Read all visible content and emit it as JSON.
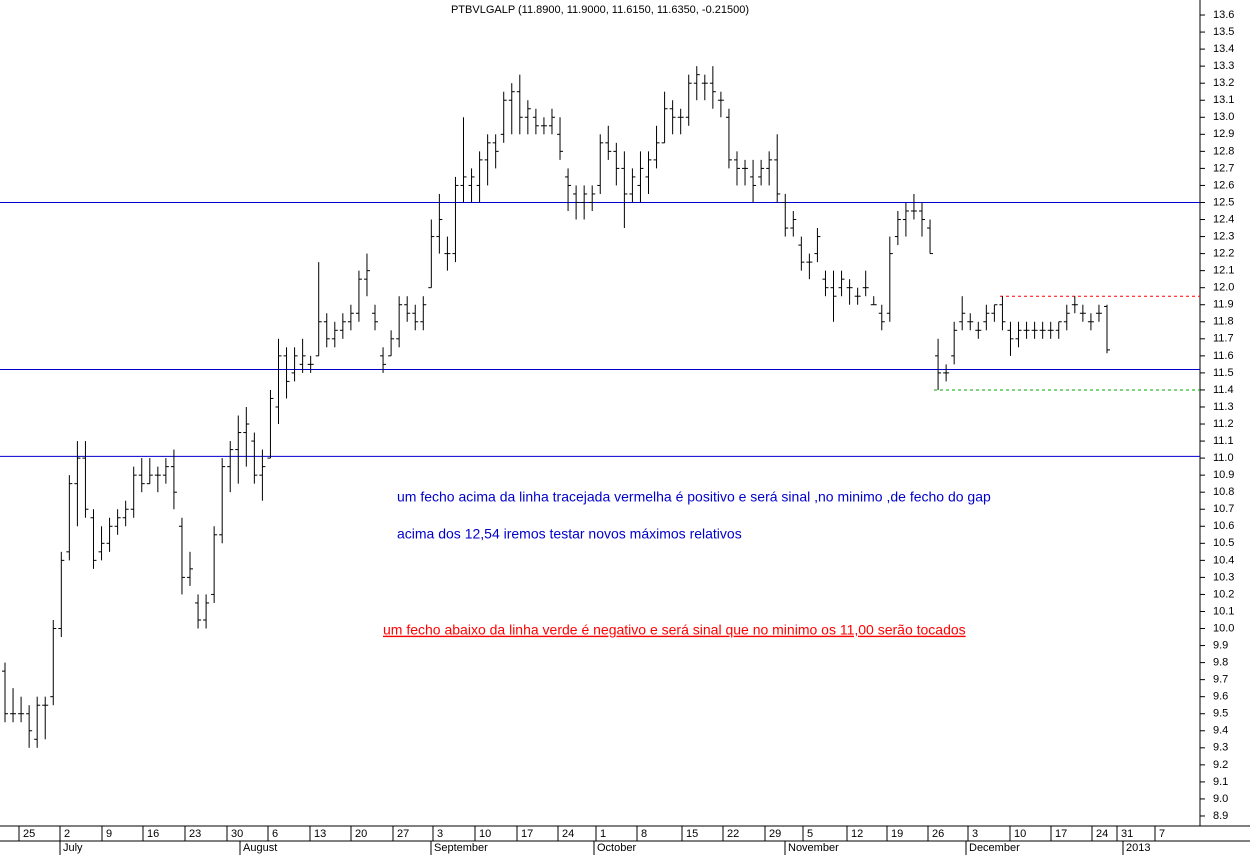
{
  "chart_data": {
    "type": "ohlc",
    "title": "PTBVLGALP (11.8900, 11.9000, 11.6150, 11.6350, -0.21500)",
    "color": "#000000",
    "open": [
      9.75,
      9.5,
      9.5,
      9.5,
      9.35,
      9.55,
      9.6,
      10.0,
      10.45,
      10.85,
      11.0,
      10.65,
      10.45,
      10.5,
      10.6,
      10.65,
      10.7,
      10.9,
      10.85,
      10.9,
      10.9,
      10.95,
      10.6,
      10.3,
      10.15,
      10.05,
      10.2,
      10.55,
      10.95,
      11.05,
      11.15,
      11.1,
      10.9,
      11.0,
      11.3,
      11.6,
      11.5,
      11.55,
      11.55,
      11.6,
      11.8,
      11.7,
      11.75,
      11.8,
      11.85,
      12.05,
      11.85,
      11.6,
      11.6,
      11.7,
      11.9,
      11.85,
      11.8,
      12.0,
      12.3,
      12.2,
      12.2,
      12.6,
      12.6,
      12.6,
      12.75,
      12.85,
      12.9,
      13.1,
      13.15,
      13.0,
      13.0,
      12.95,
      12.95,
      12.9,
      12.65,
      12.55,
      12.5,
      12.5,
      12.6,
      12.85,
      12.8,
      12.7,
      12.55,
      12.6,
      12.65,
      12.75,
      12.85,
      13.05,
      13.0,
      13.0,
      13.2,
      13.2,
      13.2,
      13.1,
      13.0,
      12.75,
      12.7,
      12.65,
      12.65,
      12.7,
      12.75,
      12.5,
      12.35,
      12.25,
      12.15,
      12.2,
      12.05,
      12.0,
      12.0,
      12.0,
      11.95,
      12.0,
      11.9,
      11.85,
      11.85,
      12.3,
      12.4,
      12.45,
      12.45,
      12.35,
      11.6,
      11.5,
      11.6,
      11.8,
      11.8,
      11.75,
      11.8,
      11.85,
      11.9,
      11.75,
      11.7,
      11.75,
      11.75,
      11.75,
      11.75,
      11.75,
      11.8,
      11.9,
      11.85,
      11.8,
      11.85,
      11.89
    ],
    "high": [
      9.8,
      9.65,
      9.6,
      9.55,
      9.6,
      9.6,
      10.05,
      10.45,
      10.9,
      11.1,
      11.1,
      10.7,
      10.6,
      10.65,
      10.7,
      10.75,
      10.95,
      11.0,
      11.0,
      10.95,
      11.0,
      11.05,
      10.65,
      10.45,
      10.2,
      10.2,
      10.6,
      11.0,
      11.1,
      11.25,
      11.3,
      11.15,
      11.05,
      11.4,
      11.7,
      11.65,
      11.65,
      11.7,
      11.6,
      12.15,
      11.85,
      11.8,
      11.85,
      11.9,
      12.1,
      12.2,
      11.9,
      11.65,
      11.75,
      11.95,
      11.95,
      11.9,
      11.95,
      12.4,
      12.55,
      12.3,
      12.65,
      13.0,
      12.7,
      12.8,
      12.9,
      12.9,
      13.15,
      13.2,
      13.25,
      13.1,
      13.05,
      13.0,
      13.05,
      13.0,
      12.7,
      12.6,
      12.6,
      12.6,
      12.9,
      12.95,
      12.85,
      12.8,
      12.7,
      12.8,
      12.8,
      12.95,
      13.15,
      13.1,
      13.05,
      13.25,
      13.3,
      13.25,
      13.3,
      13.15,
      13.05,
      12.8,
      12.75,
      12.75,
      12.75,
      12.8,
      12.9,
      12.55,
      12.45,
      12.3,
      12.2,
      12.35,
      12.1,
      12.1,
      12.1,
      12.05,
      12.0,
      12.1,
      11.95,
      11.9,
      12.3,
      12.45,
      12.5,
      12.55,
      12.5,
      12.4,
      11.7,
      11.55,
      11.8,
      11.95,
      11.85,
      11.8,
      11.9,
      11.9,
      11.95,
      11.8,
      11.8,
      11.8,
      11.8,
      11.8,
      11.8,
      11.8,
      11.9,
      11.95,
      11.9,
      11.85,
      11.9,
      11.9
    ],
    "low": [
      9.45,
      9.45,
      9.45,
      9.3,
      9.3,
      9.35,
      9.55,
      9.95,
      10.4,
      10.6,
      10.65,
      10.35,
      10.4,
      10.45,
      10.55,
      10.6,
      10.65,
      10.8,
      10.85,
      10.8,
      10.85,
      10.7,
      10.2,
      10.25,
      10.0,
      10.0,
      10.15,
      10.5,
      10.8,
      10.85,
      10.95,
      10.85,
      10.75,
      11.0,
      11.2,
      11.35,
      11.45,
      11.5,
      11.5,
      11.6,
      11.65,
      11.65,
      11.7,
      11.75,
      11.8,
      11.95,
      11.75,
      11.5,
      11.6,
      11.65,
      11.8,
      11.75,
      11.75,
      12.0,
      12.2,
      12.1,
      12.15,
      12.5,
      12.5,
      12.5,
      12.6,
      12.7,
      12.85,
      12.9,
      12.9,
      12.9,
      12.9,
      12.9,
      12.9,
      12.75,
      12.45,
      12.4,
      12.4,
      12.45,
      12.55,
      12.75,
      12.6,
      12.35,
      12.5,
      12.5,
      12.55,
      12.7,
      12.85,
      12.9,
      12.9,
      12.95,
      13.1,
      13.1,
      13.05,
      13.0,
      12.7,
      12.6,
      12.6,
      12.5,
      12.6,
      12.6,
      12.5,
      12.3,
      12.3,
      12.1,
      12.05,
      12.15,
      11.95,
      11.8,
      11.95,
      11.9,
      11.9,
      11.95,
      11.9,
      11.75,
      11.8,
      12.25,
      12.3,
      12.4,
      12.3,
      12.2,
      11.4,
      11.45,
      11.55,
      11.75,
      11.75,
      11.7,
      11.75,
      11.8,
      11.75,
      11.6,
      11.65,
      11.7,
      11.7,
      11.7,
      11.7,
      11.7,
      11.75,
      11.85,
      11.8,
      11.75,
      11.8,
      11.615
    ],
    "close": [
      9.5,
      9.5,
      9.5,
      9.4,
      9.55,
      9.55,
      10.0,
      10.4,
      10.85,
      11.0,
      10.7,
      10.4,
      10.5,
      10.6,
      10.65,
      10.7,
      10.9,
      10.85,
      10.9,
      10.9,
      10.95,
      10.8,
      10.3,
      10.35,
      10.05,
      10.15,
      10.55,
      10.95,
      11.05,
      11.15,
      11.2,
      10.9,
      10.95,
      11.35,
      11.6,
      11.45,
      11.6,
      11.6,
      11.55,
      11.8,
      11.7,
      11.75,
      11.8,
      11.85,
      12.05,
      12.1,
      11.8,
      11.55,
      11.7,
      11.9,
      11.85,
      11.8,
      11.9,
      12.3,
      12.4,
      12.2,
      12.6,
      12.65,
      12.65,
      12.75,
      12.85,
      12.8,
      13.1,
      13.15,
      13.0,
      13.05,
      12.95,
      12.95,
      13.0,
      12.8,
      12.6,
      12.5,
      12.55,
      12.55,
      12.85,
      12.8,
      12.7,
      12.55,
      12.65,
      12.7,
      12.75,
      12.85,
      13.05,
      13.0,
      13.0,
      13.2,
      13.25,
      13.2,
      13.15,
      13.1,
      12.75,
      12.7,
      12.7,
      12.6,
      12.7,
      12.75,
      12.55,
      12.35,
      12.4,
      12.15,
      12.15,
      12.3,
      12.0,
      11.95,
      12.05,
      12.0,
      11.95,
      12.0,
      11.9,
      11.8,
      12.2,
      12.4,
      12.45,
      12.45,
      12.4,
      12.2,
      11.5,
      11.5,
      11.75,
      11.85,
      11.8,
      11.75,
      11.85,
      11.9,
      11.8,
      11.7,
      11.75,
      11.75,
      11.75,
      11.75,
      11.75,
      11.8,
      11.85,
      11.9,
      11.85,
      11.8,
      11.85,
      11.635
    ],
    "ylim": [
      8.85,
      13.65
    ],
    "yticks": [
      8.9,
      {
        "value": 9.0,
        "label": "9.0"
      },
      9.1,
      9.2,
      9.3,
      9.4,
      9.5,
      9.6,
      9.7,
      9.8,
      9.9,
      {
        "value": 10.0,
        "label": "10.0"
      },
      10.1,
      10.2,
      10.3,
      10.4,
      10.5,
      10.6,
      10.7,
      10.8,
      10.9,
      {
        "value": 11.0,
        "label": "11.0"
      },
      11.1,
      11.2,
      11.3,
      11.4,
      11.5,
      11.6,
      11.7,
      11.8,
      11.9,
      {
        "value": 12.0,
        "label": "12.0"
      },
      12.1,
      12.2,
      12.3,
      12.4,
      12.5,
      12.6,
      12.7,
      12.8,
      12.9,
      {
        "value": 13.0,
        "label": "13.0"
      },
      13.1,
      13.2,
      13.3,
      13.4,
      13.5,
      13.6
    ],
    "hlines": [
      {
        "value": 12.5,
        "color": "#0000cc",
        "style": "solid"
      },
      {
        "value": 11.52,
        "color": "#0000cc",
        "style": "solid"
      },
      {
        "value": 11.01,
        "color": "#0000cc",
        "style": "solid"
      },
      {
        "value": 11.95,
        "color": "#ff0000",
        "style": "dashed"
      },
      {
        "value": 11.4,
        "color": "#00aa00",
        "style": "dashed"
      }
    ],
    "xticks": [
      "25",
      "2",
      "9",
      "16",
      "23",
      "30",
      "6",
      "13",
      "20",
      "27",
      "3",
      "10",
      "17",
      "24",
      "1",
      "8",
      "15",
      "22",
      "29",
      "5",
      "12",
      "19",
      "26",
      "3",
      "10",
      "17",
      "24",
      "31",
      "7"
    ],
    "months": [
      "July",
      "August",
      "September",
      "October",
      "November",
      "December",
      "2013"
    ],
    "annotations": [
      {
        "text": "um fecho acima da linha tracejada vermelha é positivo e será sinal ,no minimo ,de fecho do gap",
        "color": "#0000cc"
      },
      {
        "text": "acima dos 12,54 iremos testar novos máximos relativos",
        "color": "#0000cc"
      },
      {
        "text": "um fecho abaixo da linha verde é negativo e será sinal que no minimo os 11,00 serão tocados",
        "color": "#ff0000"
      }
    ]
  }
}
